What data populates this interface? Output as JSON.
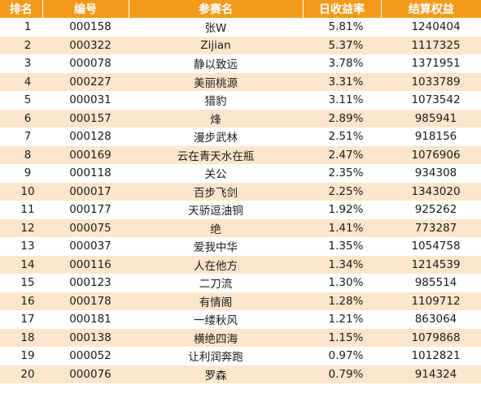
{
  "table": {
    "headers": [
      "排名",
      "编号",
      "参赛名",
      "日收益率",
      "结算权益"
    ],
    "rows": [
      [
        "1",
        "000158",
        "张W",
        "5.81%",
        "1240404"
      ],
      [
        "2",
        "000322",
        "Zijian",
        "5.37%",
        "1117325"
      ],
      [
        "3",
        "000078",
        "静以致远",
        "3.78%",
        "1371951"
      ],
      [
        "4",
        "000227",
        "美丽桃源",
        "3.31%",
        "1033789"
      ],
      [
        "5",
        "000031",
        "猎豹",
        "3.11%",
        "1073542"
      ],
      [
        "6",
        "000157",
        "烽",
        "2.89%",
        "985941"
      ],
      [
        "7",
        "000128",
        "漫步武林",
        "2.51%",
        "918156"
      ],
      [
        "8",
        "000169",
        "云在青天水在瓶",
        "2.47%",
        "1076906"
      ],
      [
        "9",
        "000118",
        "关公",
        "2.35%",
        "934308"
      ],
      [
        "10",
        "000017",
        "百步飞剑",
        "2.25%",
        "1343020"
      ],
      [
        "11",
        "000177",
        "天骄逗油铜",
        "1.92%",
        "925262"
      ],
      [
        "12",
        "000075",
        "绝",
        "1.41%",
        "773287"
      ],
      [
        "13",
        "000037",
        "爱我中华",
        "1.35%",
        "1054758"
      ],
      [
        "14",
        "000116",
        "人在他方",
        "1.34%",
        "1214539"
      ],
      [
        "15",
        "000123",
        "二刀流",
        "1.30%",
        "985514"
      ],
      [
        "16",
        "000178",
        "有情阁",
        "1.28%",
        "1109712"
      ],
      [
        "17",
        "000181",
        "一缕秋风",
        "1.21%",
        "863064"
      ],
      [
        "18",
        "000138",
        "横绝四海",
        "1.15%",
        "1079868"
      ],
      [
        "19",
        "000052",
        "让利润奔跑",
        "0.97%",
        "1012821"
      ],
      [
        "20",
        "000076",
        "罗森",
        "0.79%",
        "914324"
      ]
    ]
  },
  "colors": {
    "header_bg": "#f39a1b",
    "header_text": "#ffffff",
    "stripe_bg": "#fce6cb"
  }
}
